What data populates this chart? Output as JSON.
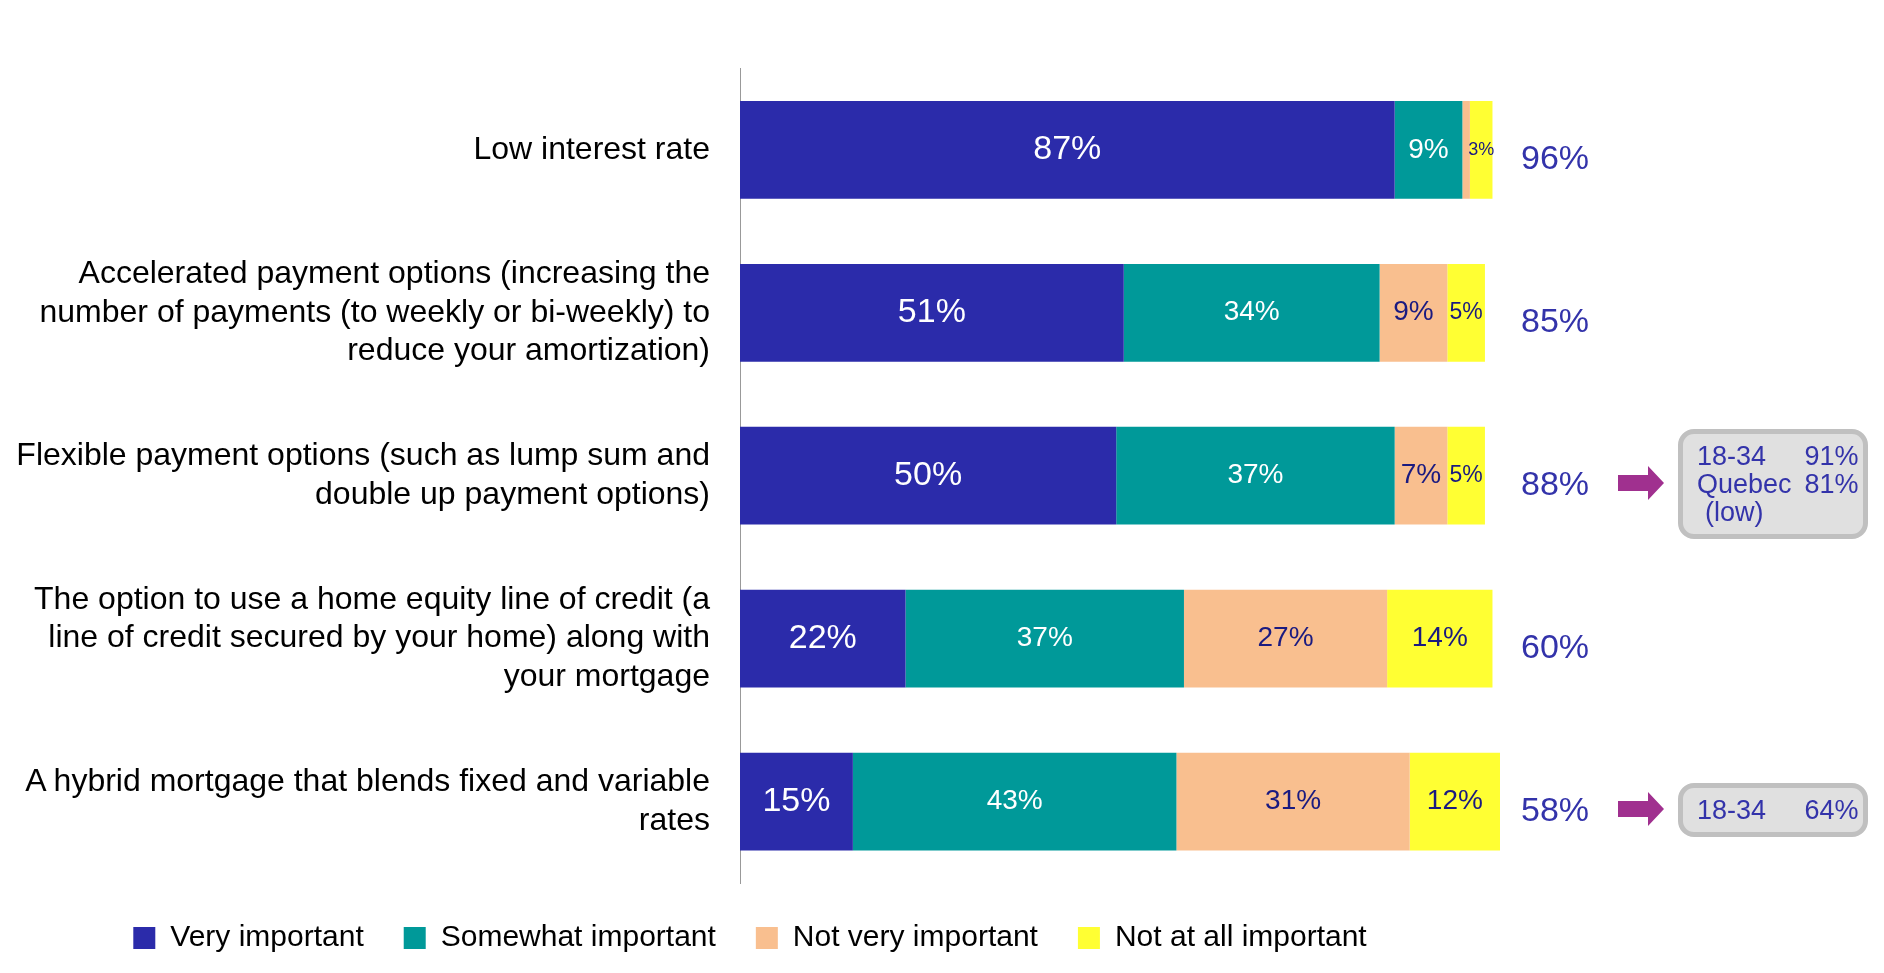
{
  "chart_data": {
    "type": "bar",
    "orientation": "horizontal",
    "stacked": true,
    "categories": [
      "Low interest rate",
      "Accelerated payment options (increasing the number of payments (to weekly or bi-weekly) to reduce your amortization)",
      "Flexible payment options (such as lump sum and double up payment options)",
      "The option to use a home equity line of credit (a line of credit secured by your home) along with your mortgage",
      "A hybrid mortgage that blends fixed and variable rates"
    ],
    "series": [
      {
        "name": "Very important",
        "color": "#2b2baa",
        "values": [
          87,
          51,
          50,
          22,
          15
        ],
        "value_labels": [
          "87%",
          "51%",
          "50%",
          "22%",
          "15%"
        ]
      },
      {
        "name": "Somewhat important",
        "color": "#009999",
        "values": [
          9,
          34,
          37,
          37,
          43
        ],
        "value_labels": [
          "9%",
          "34%",
          "37%",
          "37%",
          "43%"
        ]
      },
      {
        "name": "Not very important",
        "color": "#f9bf8f",
        "values": [
          1,
          9,
          7,
          27,
          31
        ],
        "value_labels": [
          null,
          "9%",
          "7%",
          "27%",
          "31%"
        ]
      },
      {
        "name": "Not at all important",
        "color": "#ffff33",
        "values": [
          3,
          5,
          5,
          14,
          12
        ],
        "value_labels": [
          "3%",
          "5%",
          "5%",
          "14%",
          "12%"
        ]
      }
    ],
    "xlim": [
      0,
      101
    ],
    "tick_labels": "y",
    "grid": false,
    "legend": "bottom",
    "annotations": [
      "96%",
      "85%",
      "88%",
      "60%",
      "58%",
      "18-34 91%\nQuebec 81%\n(low)",
      "18-34 64%"
    ]
  }
}
